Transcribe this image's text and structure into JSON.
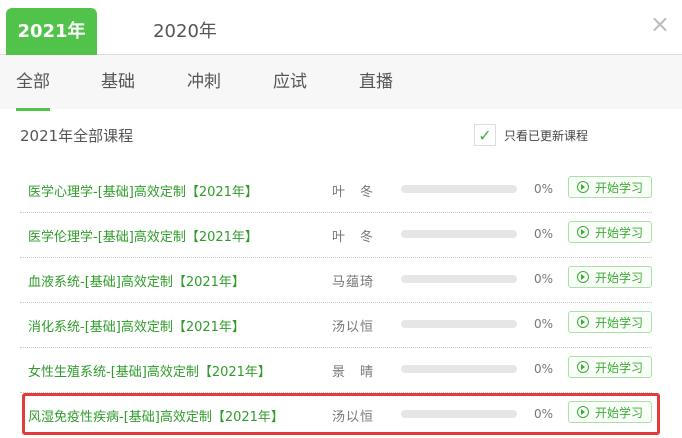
{
  "year_tabs": [
    {
      "label": "2021年",
      "active": true
    },
    {
      "label": "2020年",
      "active": false
    }
  ],
  "close_icon": "×",
  "category_tabs": [
    {
      "label": "全部",
      "active": true
    },
    {
      "label": "基础"
    },
    {
      "label": "冲刺"
    },
    {
      "label": "应试"
    },
    {
      "label": "直播"
    }
  ],
  "section_title": "2021年全部课程",
  "filter": {
    "label": "只看已更新课程",
    "checked": true,
    "check": "✓"
  },
  "courses": [
    {
      "name": "医学心理学-[基础]高效定制【2021年】",
      "teacher": "叶　冬",
      "progress": 0,
      "progress_label": "0%",
      "button": "开始学习"
    },
    {
      "name": "医学伦理学-[基础]高效定制【2021年】",
      "teacher": "叶　冬",
      "progress": 0,
      "progress_label": "0%",
      "button": "开始学习"
    },
    {
      "name": "血液系统-[基础]高效定制【2021年】",
      "teacher": "马蕴琦",
      "progress": 0,
      "progress_label": "0%",
      "button": "开始学习"
    },
    {
      "name": "消化系统-[基础]高效定制【2021年】",
      "teacher": "汤以恒",
      "progress": 0,
      "progress_label": "0%",
      "button": "开始学习"
    },
    {
      "name": "女性生殖系统-[基础]高效定制【2021年】",
      "teacher": "景　晴",
      "progress": 0,
      "progress_label": "0%",
      "button": "开始学习"
    },
    {
      "name": "风湿免疫性疾病-[基础]高效定制【2021年】",
      "teacher": "汤以恒",
      "progress": 0,
      "progress_label": "0%",
      "button": "开始学习",
      "highlighted": true
    }
  ],
  "colors": {
    "accent": "#52c34a",
    "link": "#2f9c2a",
    "highlight": "#e33a3a"
  }
}
